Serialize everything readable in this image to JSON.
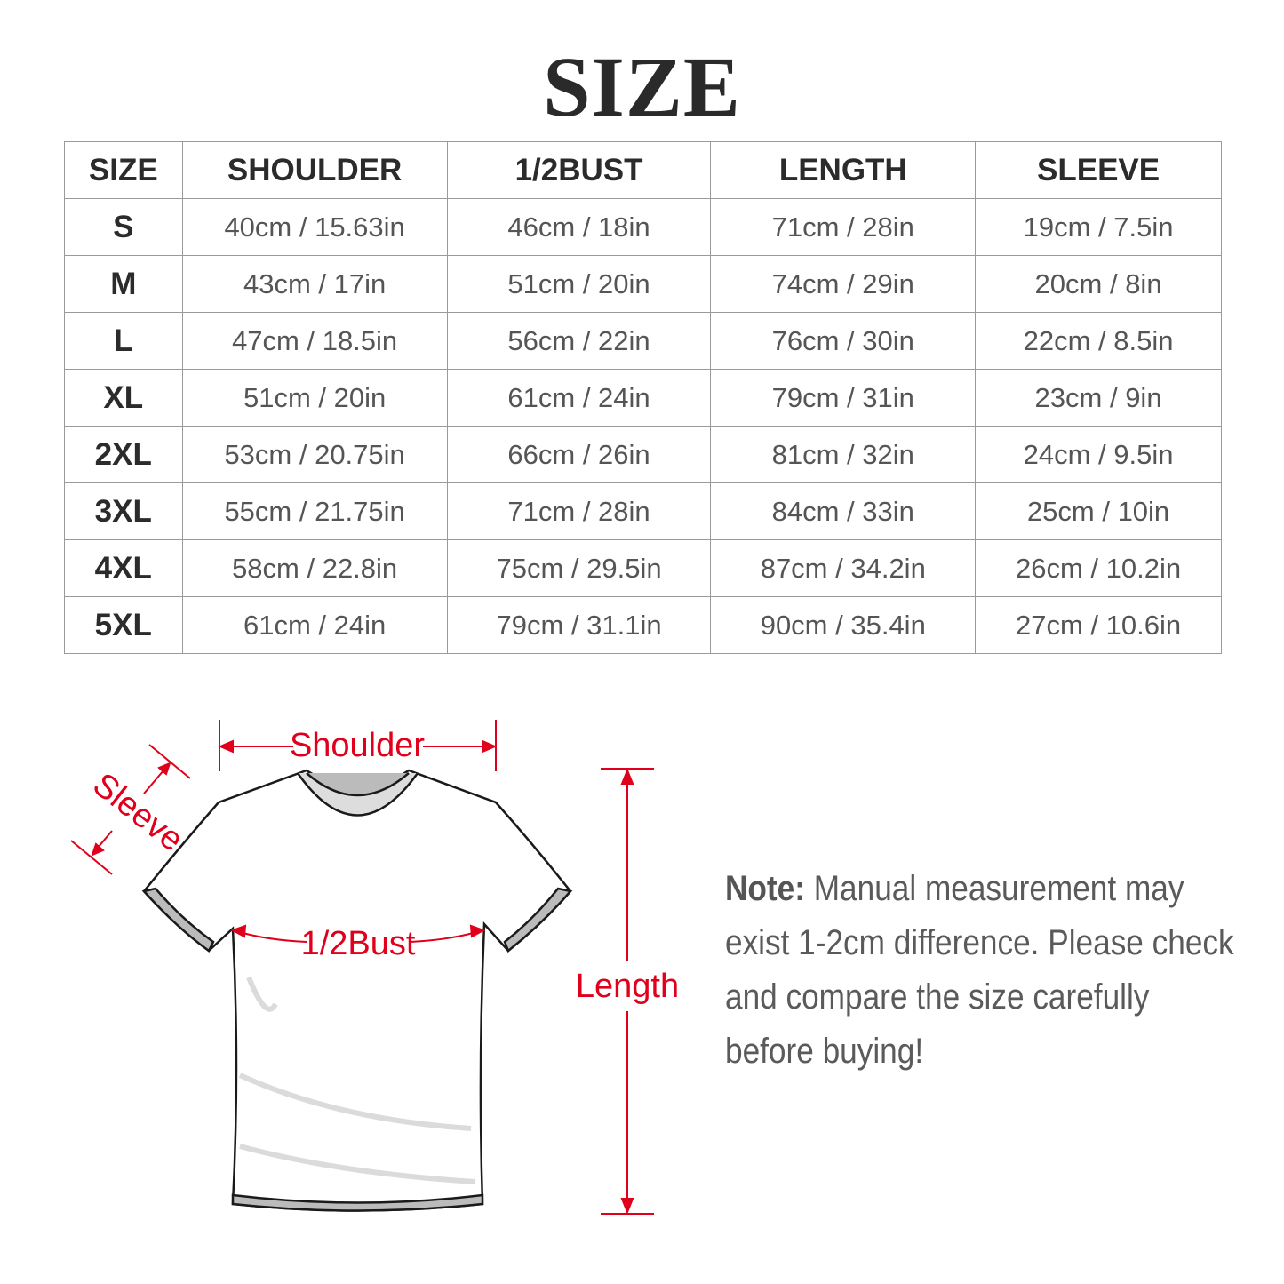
{
  "title": "SIZE",
  "table": {
    "headers": [
      "SIZE",
      "SHOULDER",
      "1/2BUST",
      "LENGTH",
      "SLEEVE"
    ],
    "rows": [
      [
        "S",
        "40cm / 15.63in",
        "46cm / 18in",
        "71cm / 28in",
        "19cm / 7.5in"
      ],
      [
        "M",
        "43cm / 17in",
        "51cm / 20in",
        "74cm / 29in",
        "20cm / 8in"
      ],
      [
        "L",
        "47cm / 18.5in",
        "56cm / 22in",
        "76cm / 30in",
        "22cm / 8.5in"
      ],
      [
        "XL",
        "51cm / 20in",
        "61cm / 24in",
        "79cm / 31in",
        "23cm / 9in"
      ],
      [
        "2XL",
        "53cm / 20.75in",
        "66cm / 26in",
        "81cm / 32in",
        "24cm / 9.5in"
      ],
      [
        "3XL",
        "55cm / 21.75in",
        "71cm / 28in",
        "84cm / 33in",
        "25cm / 10in"
      ],
      [
        "4XL",
        "58cm / 22.8in",
        "75cm / 29.5in",
        "87cm / 34.2in",
        "26cm / 10.2in"
      ],
      [
        "5XL",
        "61cm / 24in",
        "79cm / 31.1in",
        "90cm / 35.4in",
        "27cm / 10.6in"
      ]
    ]
  },
  "diagram": {
    "shoulder": "Shoulder",
    "sleeve": "Sleeve",
    "bust": "1/2Bust",
    "length": "Length",
    "accent": "#e0001b"
  },
  "note": {
    "label": "Note:",
    "text": " Manual measurement may exist 1-2cm difference. Please check and compare the size carefully before buying!"
  }
}
